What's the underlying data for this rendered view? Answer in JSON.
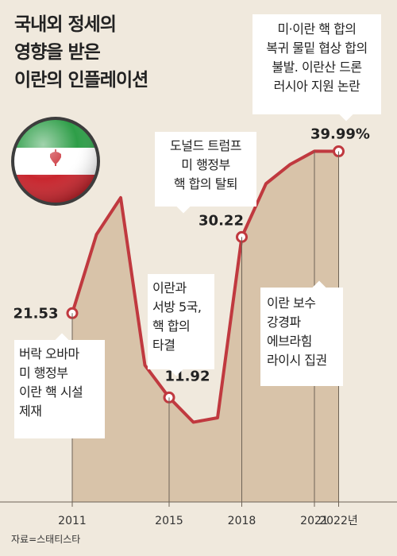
{
  "title": [
    "국내외 정세의",
    "영향을 받은",
    "이란의 인플레이션"
  ],
  "source": "자료=스태티스타",
  "colors": {
    "background": "#f0e9dd",
    "line": "#c0393f",
    "area": "#d8c3a9",
    "marker_fill": "#ffffff"
  },
  "chart_data": {
    "type": "area",
    "unit": "%",
    "x_tick_labels": [
      "2011",
      "2015",
      "2018",
      "2021",
      "2022년"
    ],
    "x_ticks": [
      2011,
      2015,
      2018,
      2021,
      2022
    ],
    "ylim": [
      0,
      50
    ],
    "grid": false,
    "series": [
      {
        "x": [
          2011,
          2012,
          2013,
          2014,
          2015,
          2016,
          2017,
          2018,
          2019,
          2020,
          2021,
          2022
        ],
        "y": [
          21.53,
          30.5,
          34.7,
          15.6,
          11.92,
          9.1,
          9.6,
          30.22,
          36.3,
          38.5,
          40.0,
          39.99
        ]
      }
    ],
    "data_labels": [
      {
        "x": 2011,
        "label": "21.53"
      },
      {
        "x": 2015,
        "label": "11.92"
      },
      {
        "x": 2018,
        "label": "30.22"
      },
      {
        "x": 2022,
        "label": "39.99%"
      }
    ],
    "annotations": [
      {
        "x": 2011,
        "lines": [
          "버락 오바마",
          "미 행정부",
          "이란 핵 시설",
          "제재"
        ]
      },
      {
        "x": 2015,
        "lines": [
          "이란과",
          "서방 5국,",
          "핵 합의",
          "타결"
        ]
      },
      {
        "x": 2018,
        "lines": [
          "도널드 트럼프",
          "미 행정부",
          "핵 합의 탈퇴"
        ]
      },
      {
        "x": 2022,
        "lines": [
          "미·이란 핵 합의",
          "복귀 물밑 협상 합의",
          "불발. 이란산 드론",
          "러시아 지원 논란"
        ]
      },
      {
        "x": 2021,
        "lines": [
          "이란 보수",
          "강경파",
          "에브라힘",
          "라이시 집권"
        ]
      }
    ]
  }
}
